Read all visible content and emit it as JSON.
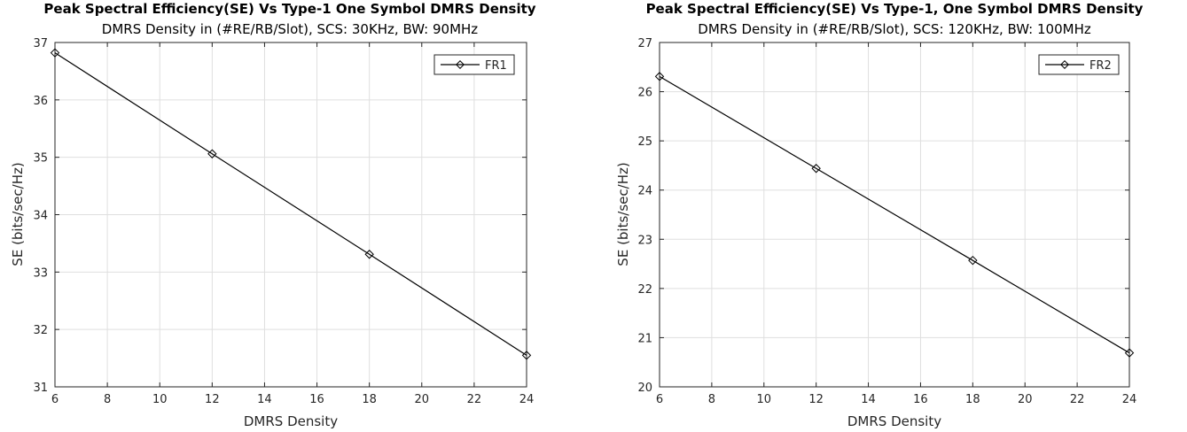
{
  "chart_data": [
    {
      "type": "line",
      "title": "Peak Spectral Efficiency(SE) Vs Type-1 One Symbol DMRS Density",
      "subtitle": "DMRS Density in (#RE/RB/Slot), SCS: 30KHz, BW: 90MHz",
      "xlabel": "DMRS Density",
      "ylabel": "SE (bits/sec/Hz)",
      "xlim": [
        6,
        24
      ],
      "ylim": [
        31,
        37
      ],
      "xticks": [
        6,
        8,
        10,
        12,
        14,
        16,
        18,
        20,
        22,
        24
      ],
      "yticks": [
        31,
        32,
        33,
        34,
        35,
        36,
        37
      ],
      "grid": true,
      "legend_position": "top-right",
      "marker": "diamond",
      "series": [
        {
          "name": "FR1",
          "color": "#000000",
          "x": [
            6,
            12,
            18,
            24
          ],
          "y": [
            36.82,
            35.06,
            33.31,
            31.55
          ]
        }
      ]
    },
    {
      "type": "line",
      "title": "Peak Spectral Efficiency(SE) Vs Type-1, One Symbol DMRS Density",
      "subtitle": "DMRS Density in (#RE/RB/Slot), SCS: 120KHz, BW: 100MHz",
      "xlabel": "DMRS Density",
      "ylabel": "SE (bits/sec/Hz)",
      "xlim": [
        6,
        24
      ],
      "ylim": [
        20,
        27
      ],
      "xticks": [
        6,
        8,
        10,
        12,
        14,
        16,
        18,
        20,
        22,
        24
      ],
      "yticks": [
        20,
        21,
        22,
        23,
        24,
        25,
        26,
        27
      ],
      "grid": true,
      "legend_position": "top-right",
      "marker": "diamond",
      "series": [
        {
          "name": "FR2",
          "color": "#000000",
          "x": [
            6,
            12,
            18,
            24
          ],
          "y": [
            26.31,
            24.44,
            22.57,
            20.69
          ]
        }
      ]
    }
  ]
}
